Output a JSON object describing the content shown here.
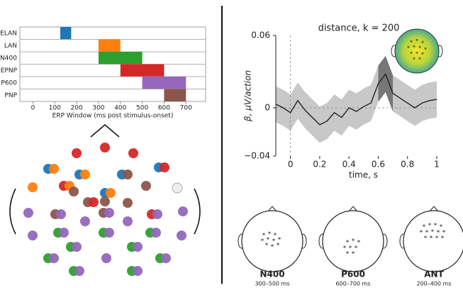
{
  "chart_data": [
    {
      "type": "range-bar",
      "categories": [
        "ELAN",
        "LAN",
        "N400",
        "EPNP",
        "P600",
        "PNP"
      ],
      "starts": [
        125,
        300,
        300,
        400,
        500,
        600
      ],
      "ends": [
        175,
        400,
        500,
        600,
        700,
        700
      ],
      "colors": [
        "#1f77b4",
        "#ff7f0e",
        "#2ca02c",
        "#d62728",
        "#9467bd",
        "#8c564b"
      ],
      "xlabel": "ERP Window (ms post stimulus-onset)",
      "xlim": [
        -60,
        790
      ],
      "xticks": [
        0,
        100,
        200,
        300,
        400,
        500,
        600,
        700
      ],
      "grid": true
    },
    {
      "type": "line",
      "title": "distance, k = 200",
      "ylabel": "β, μV/action",
      "xlabel": "time, s",
      "x": [
        -0.1,
        -0.05,
        0,
        0.05,
        0.1,
        0.15,
        0.2,
        0.25,
        0.3,
        0.35,
        0.4,
        0.45,
        0.5,
        0.55,
        0.6,
        0.65,
        0.7,
        0.75,
        0.8,
        0.85,
        0.9,
        0.95,
        1.0
      ],
      "values": [
        0.003,
        0.0,
        -0.004,
        0.006,
        -0.002,
        -0.008,
        -0.014,
        -0.011,
        -0.004,
        -0.008,
        0.0,
        -0.003,
        0.001,
        0.004,
        0.02,
        0.028,
        0.012,
        0.008,
        0.004,
        0.0,
        0.004,
        0.006,
        0.007
      ],
      "upper": [
        0.018,
        0.015,
        0.011,
        0.021,
        0.013,
        0.007,
        0.001,
        0.004,
        0.011,
        0.007,
        0.015,
        0.012,
        0.016,
        0.019,
        0.035,
        0.043,
        0.027,
        0.023,
        0.019,
        0.015,
        0.019,
        0.021,
        0.022
      ],
      "lower": [
        -0.012,
        -0.015,
        -0.019,
        -0.009,
        -0.017,
        -0.023,
        -0.029,
        -0.026,
        -0.019,
        -0.023,
        -0.015,
        -0.018,
        -0.014,
        -0.011,
        0.005,
        0.013,
        -0.003,
        -0.007,
        -0.011,
        -0.015,
        -0.011,
        -0.009,
        -0.008
      ],
      "highlight": [
        0.6,
        0.7
      ],
      "color": "#222222",
      "band_color": "#c8c8c8",
      "highlight_color": "#777777",
      "xlim": [
        -0.1,
        1.0
      ],
      "ylim": [
        -0.04,
        0.06
      ],
      "xticks": [
        0,
        0.2,
        0.4,
        0.6,
        0.8,
        1
      ],
      "yticks": [
        {
          "value": -0.04,
          "label": "−0.04"
        },
        0,
        0.06
      ]
    }
  ],
  "topomaps": [
    {
      "label": "N400",
      "window": "300–500 ms"
    },
    {
      "label": "P600",
      "window": "600–700 ms"
    },
    {
      "label": "ANT",
      "window": "200–400 ms"
    }
  ]
}
